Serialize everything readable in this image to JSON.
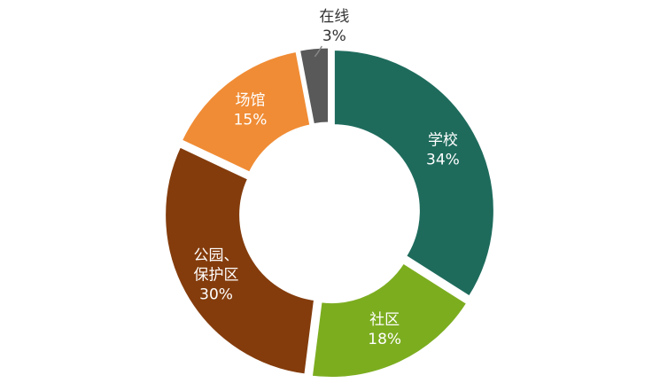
{
  "chart_data": {
    "type": "donut",
    "categories": [
      "学校",
      "社区",
      "公园、\n保护区",
      "场馆",
      "在线"
    ],
    "values": [
      34,
      18,
      30,
      15,
      3
    ],
    "value_labels": [
      "34%",
      "18%",
      "30%",
      "15%",
      "3%"
    ],
    "colors": [
      "#1e6b5c",
      "#7cad1f",
      "#843c0c",
      "#f08c35",
      "#595959"
    ]
  }
}
